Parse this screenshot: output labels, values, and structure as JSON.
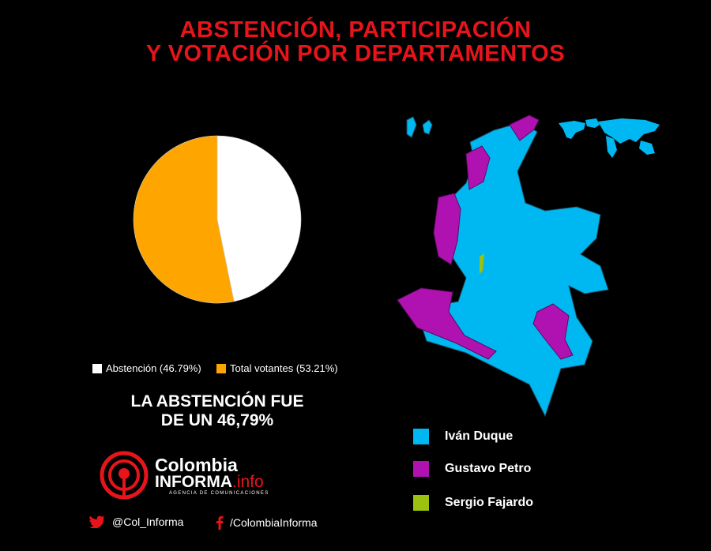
{
  "title": {
    "line1": "ABSTENCIÓN, PARTICIPACIÓN",
    "line2": "Y VOTACIÓN POR DEPARTAMENTOS"
  },
  "chart_data": {
    "type": "pie",
    "slices": [
      {
        "name": "Abstención",
        "value": 46.79,
        "color": "#ffffff",
        "legend": "Abstención (46.79%)"
      },
      {
        "name": "Total votantes",
        "value": 53.21,
        "color": "#ffa500",
        "legend": "Total votantes (53.21%)"
      }
    ],
    "legend_position": "bottom"
  },
  "note": {
    "line1": "LA ABSTENCIÓN FUE",
    "line2": "DE UN 46,79%"
  },
  "map_legend": [
    {
      "label": "Iván Duque",
      "color": "#00b8f1"
    },
    {
      "label": "Gustavo Petro",
      "color": "#b012b2"
    },
    {
      "label": "Sergio Fajardo",
      "color": "#9cc10f"
    }
  ],
  "brand": {
    "name1": "Colombia",
    "name2": "INFORMA",
    "suffix": ".info",
    "tagline": "AGENCIA DE COMUNICACIONES",
    "accent": "#e8141b"
  },
  "social": {
    "twitter": "@Col_Informa",
    "facebook": "/ColombiaInforma"
  }
}
